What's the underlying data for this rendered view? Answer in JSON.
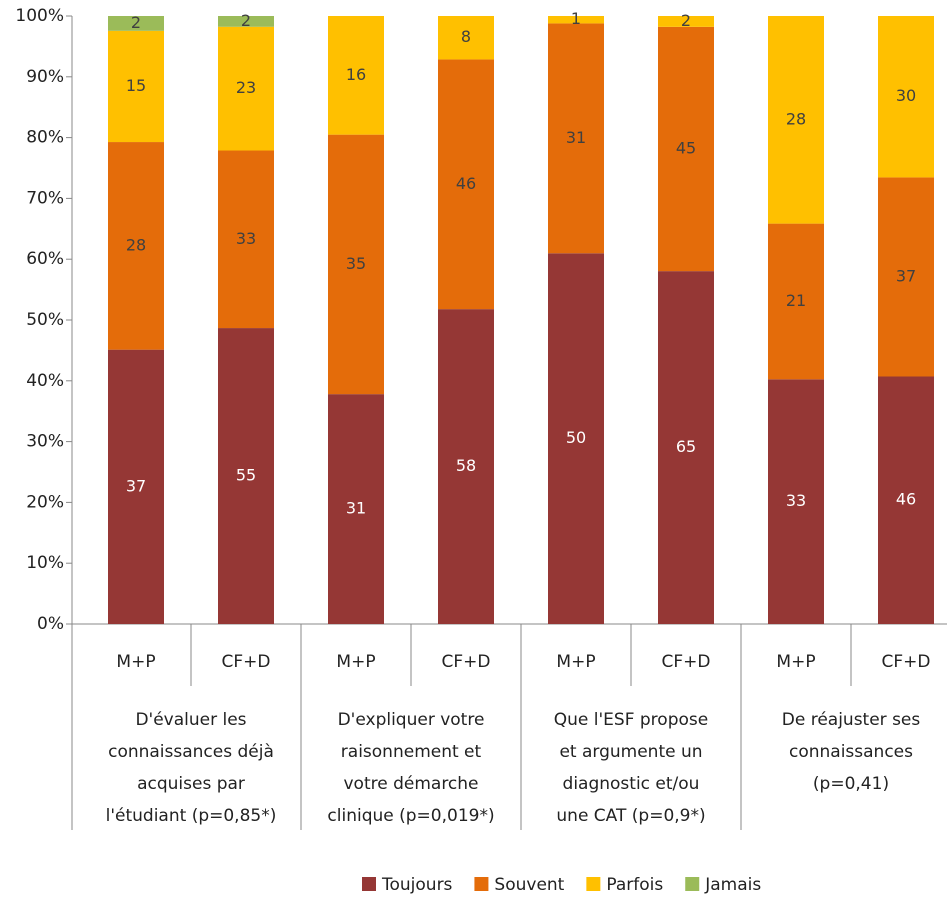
{
  "chart_data": {
    "type": "bar",
    "stacked": "percent",
    "categories": [
      "M+P",
      "CF+D",
      "M+P",
      "CF+D",
      "M+P",
      "CF+D",
      "M+P",
      "CF+D"
    ],
    "groups": [
      [
        "D'évaluer les",
        "connaissances déjà",
        "acquises par",
        "l'étudiant (p=0,85*)"
      ],
      [
        "D'expliquer votre",
        "raisonnement et",
        "votre démarche",
        "clinique (p=0,019*)"
      ],
      [
        "Que l'ESF propose",
        "et argumente un",
        "diagnostic et/ou",
        "une CAT (p=0,9*)"
      ],
      [
        "De réajuster ses",
        "connaissances",
        "(p=0,41)"
      ]
    ],
    "series": [
      {
        "name": "Toujours",
        "color": "#953735",
        "label_color": "#ffffff",
        "values": [
          37,
          55,
          31,
          58,
          50,
          65,
          33,
          46
        ]
      },
      {
        "name": "Souvent",
        "color": "#e46c0a",
        "label_color": "#404040",
        "values": [
          28,
          33,
          35,
          46,
          31,
          45,
          21,
          37
        ]
      },
      {
        "name": "Parfois",
        "color": "#ffc000",
        "label_color": "#404040",
        "values": [
          15,
          23,
          16,
          8,
          1,
          2,
          28,
          30
        ]
      },
      {
        "name": "Jamais",
        "color": "#9bbb59",
        "label_color": "#404040",
        "values": [
          2,
          2,
          null,
          null,
          null,
          null,
          null,
          null
        ]
      }
    ],
    "ylim": [
      0,
      100
    ],
    "yticks": [
      {
        "value": 0,
        "label": "0%"
      },
      {
        "value": 10,
        "label": "10%"
      },
      {
        "value": 20,
        "label": "20%"
      },
      {
        "value": 30,
        "label": "30%"
      },
      {
        "value": 40,
        "label": "40%"
      },
      {
        "value": 50,
        "label": "50%"
      },
      {
        "value": 60,
        "label": "60%"
      },
      {
        "value": 70,
        "label": "70%"
      },
      {
        "value": 80,
        "label": "80%"
      },
      {
        "value": 90,
        "label": "90%"
      },
      {
        "value": 100,
        "label": "100%"
      }
    ],
    "legend": "bottom"
  }
}
